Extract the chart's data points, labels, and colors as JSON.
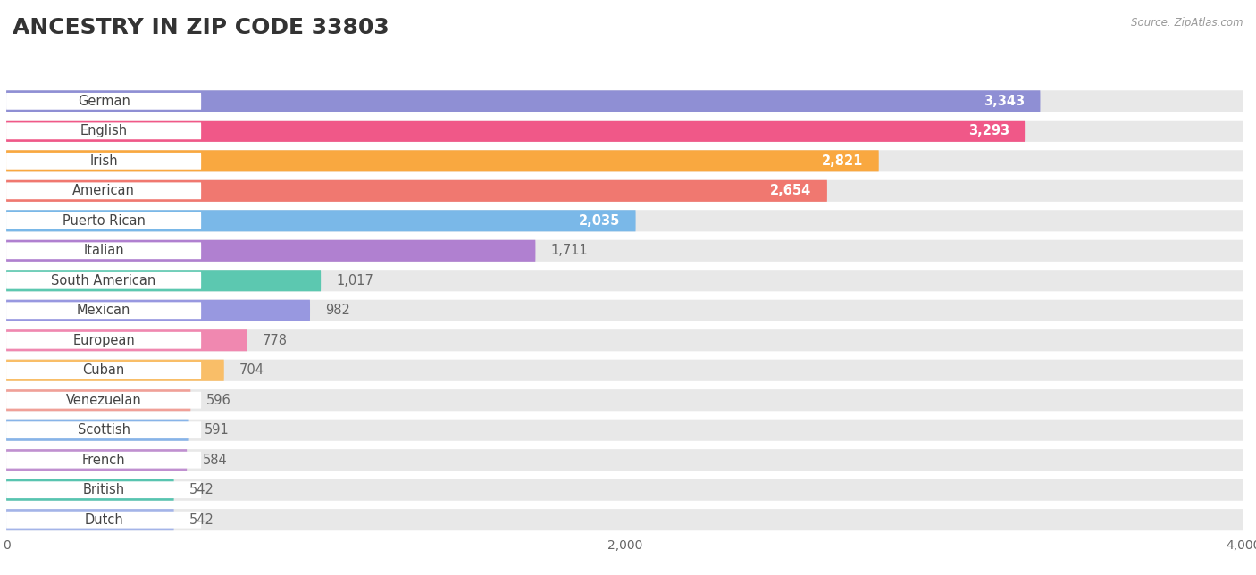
{
  "title": "ANCESTRY IN ZIP CODE 33803",
  "source": "Source: ZipAtlas.com",
  "categories": [
    "German",
    "English",
    "Irish",
    "American",
    "Puerto Rican",
    "Italian",
    "South American",
    "Mexican",
    "European",
    "Cuban",
    "Venezuelan",
    "Scottish",
    "French",
    "British",
    "Dutch"
  ],
  "values": [
    3343,
    3293,
    2821,
    2654,
    2035,
    1711,
    1017,
    982,
    778,
    704,
    596,
    591,
    584,
    542,
    542
  ],
  "colors": [
    "#8f8fd4",
    "#f05888",
    "#f9a840",
    "#f07870",
    "#7ab8e8",
    "#b080d0",
    "#5cc8b0",
    "#9898e0",
    "#f088b0",
    "#f9be68",
    "#f0a098",
    "#88b4e8",
    "#c090d0",
    "#58c4b0",
    "#a4b4e8"
  ],
  "row_bg_color": "#f0f0f0",
  "bar_full_bg": "#e0e0e0",
  "xlim": [
    0,
    4000
  ],
  "xticks": [
    0,
    2000,
    4000
  ],
  "title_fontsize": 18,
  "label_fontsize": 10.5,
  "value_fontsize": 10.5,
  "background_color": "#ffffff"
}
